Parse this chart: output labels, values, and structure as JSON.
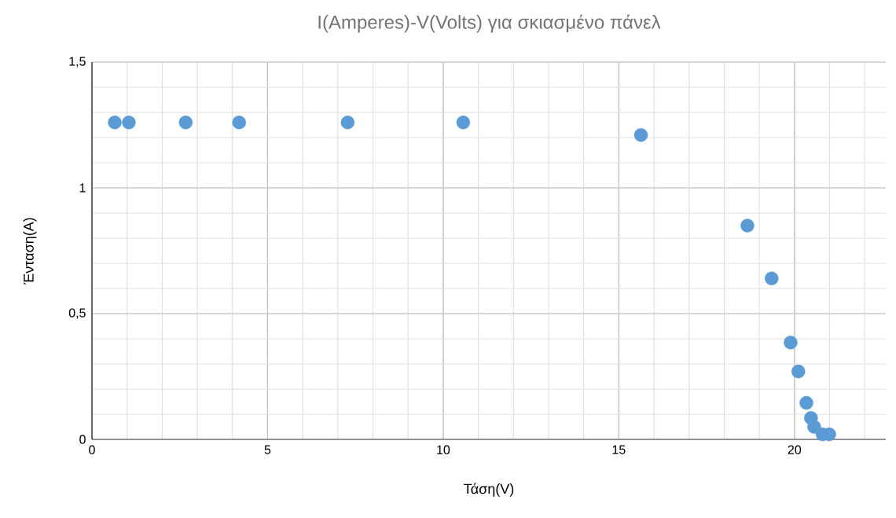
{
  "chart_data": {
    "type": "scatter",
    "title": "I(Amperes)-V(Volts) για σκιασμένο πάνελ",
    "xlabel": "Τάση(V)",
    "ylabel": "Ένταση(A)",
    "x": [
      0.65,
      1.05,
      2.67,
      4.19,
      7.28,
      10.57,
      15.63,
      18.66,
      19.35,
      19.89,
      20.11,
      20.34,
      20.47,
      20.56,
      20.67,
      20.8,
      20.99
    ],
    "series": [
      {
        "color": "#5b9bd5",
        "values": [
          1.26,
          1.26,
          1.26,
          1.26,
          1.26,
          1.26,
          1.21,
          0.85,
          0.64,
          0.385,
          0.27,
          0.145,
          0.085,
          0.05,
          null,
          0.02,
          0.02
        ]
      }
    ],
    "xlim": [
      0,
      22.6
    ],
    "ylim": [
      0,
      1.5
    ],
    "xticks": [
      0,
      5,
      10,
      15,
      20
    ],
    "yticks": [
      0,
      {
        "value": 0.5,
        "label": "0,5"
      },
      1,
      {
        "value": 1.5,
        "label": "1,5"
      }
    ],
    "grid": true,
    "marker": "circle"
  }
}
